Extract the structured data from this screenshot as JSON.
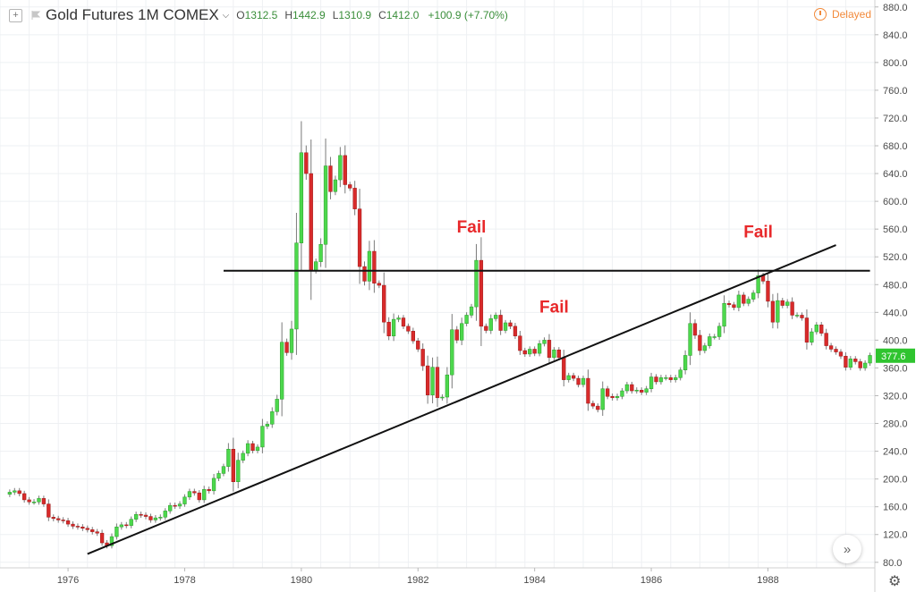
{
  "header": {
    "symbol": "Gold Futures  1M  COMEX",
    "open_label": "O",
    "open": "1312.5",
    "high_label": "H",
    "high": "1442.9",
    "low_label": "L",
    "low": "1310.9",
    "close_label": "C",
    "close": "1412.0",
    "change": "+100.9 (+7.70%)",
    "delayed": "Delayed"
  },
  "colors": {
    "up": "#4cd84c",
    "down": "#d82a2a",
    "wick": "#7a7a7a",
    "price_tag": "#2fc42f",
    "annotation": "#e8282a"
  },
  "chart_data": {
    "type": "candlestick",
    "xlim": [
      "1974-11",
      "1989-11"
    ],
    "ylim": [
      72,
      890
    ],
    "y_ticks": [
      80,
      120,
      160,
      200,
      240,
      280,
      320,
      360,
      400,
      440,
      480,
      520,
      560,
      600,
      640,
      680,
      720,
      760,
      800,
      840,
      880
    ],
    "y_tick_labels": [
      "80.0",
      "120.0",
      "160.0",
      "200.0",
      "240.0",
      "280.0",
      "320.0",
      "360.0",
      "400.0",
      "440.0",
      "480.0",
      "520.0",
      "560.0",
      "600.0",
      "640.0",
      "680.0",
      "720.0",
      "760.0",
      "800.0",
      "840.0",
      "880.0"
    ],
    "x_ticks": [
      "1976",
      "1978",
      "1980",
      "1982",
      "1984",
      "1986",
      "1988"
    ],
    "x_tick_dates": [
      "1976-01",
      "1978-01",
      "1980-01",
      "1982-01",
      "1984-01",
      "1986-01",
      "1988-01"
    ],
    "last_price": "377.6",
    "closes": [
      [
        "1975-01",
        181
      ],
      [
        "1975-02",
        183
      ],
      [
        "1975-03",
        179
      ],
      [
        "1975-04",
        170
      ],
      [
        "1975-05",
        167
      ],
      [
        "1975-06",
        167
      ],
      [
        "1975-07",
        172
      ],
      [
        "1975-08",
        164
      ],
      [
        "1975-09",
        145
      ],
      [
        "1975-10",
        143
      ],
      [
        "1975-11",
        141
      ],
      [
        "1975-12",
        140
      ],
      [
        "1976-01",
        135
      ],
      [
        "1976-02",
        132
      ],
      [
        "1976-03",
        131
      ],
      [
        "1976-04",
        129
      ],
      [
        "1976-05",
        127
      ],
      [
        "1976-06",
        124
      ],
      [
        "1976-07",
        122
      ],
      [
        "1976-08",
        108
      ],
      [
        "1976-09",
        104
      ],
      [
        "1976-10",
        117
      ],
      [
        "1976-11",
        131
      ],
      [
        "1976-12",
        134
      ],
      [
        "1977-01",
        133
      ],
      [
        "1977-02",
        142
      ],
      [
        "1977-03",
        149
      ],
      [
        "1977-04",
        148
      ],
      [
        "1977-05",
        146
      ],
      [
        "1977-06",
        141
      ],
      [
        "1977-07",
        144
      ],
      [
        "1977-08",
        145
      ],
      [
        "1977-09",
        154
      ],
      [
        "1977-10",
        162
      ],
      [
        "1977-11",
        161
      ],
      [
        "1977-12",
        164
      ],
      [
        "1978-01",
        174
      ],
      [
        "1978-02",
        182
      ],
      [
        "1978-03",
        180
      ],
      [
        "1978-04",
        170
      ],
      [
        "1978-05",
        185
      ],
      [
        "1978-06",
        183
      ],
      [
        "1978-07",
        201
      ],
      [
        "1978-08",
        208
      ],
      [
        "1978-09",
        218
      ],
      [
        "1978-10",
        243
      ],
      [
        "1978-11",
        196
      ],
      [
        "1978-12",
        227
      ],
      [
        "1979-01",
        237
      ],
      [
        "1979-02",
        251
      ],
      [
        "1979-03",
        241
      ],
      [
        "1979-04",
        246
      ],
      [
        "1979-05",
        276
      ],
      [
        "1979-06",
        279
      ],
      [
        "1979-07",
        297
      ],
      [
        "1979-08",
        315
      ],
      [
        "1979-09",
        397
      ],
      [
        "1979-10",
        382
      ],
      [
        "1979-11",
        416
      ],
      [
        "1979-12",
        540
      ],
      [
        "1980-01",
        670
      ],
      [
        "1980-02",
        640
      ],
      [
        "1980-03",
        500
      ],
      [
        "1980-04",
        513
      ],
      [
        "1980-05",
        538
      ],
      [
        "1980-06",
        651
      ],
      [
        "1980-07",
        614
      ],
      [
        "1980-08",
        631
      ],
      [
        "1980-09",
        666
      ],
      [
        "1980-10",
        624
      ],
      [
        "1980-11",
        619
      ],
      [
        "1980-12",
        589
      ],
      [
        "1981-01",
        506
      ],
      [
        "1981-02",
        485
      ],
      [
        "1981-03",
        528
      ],
      [
        "1981-04",
        482
      ],
      [
        "1981-05",
        479
      ],
      [
        "1981-06",
        426
      ],
      [
        "1981-07",
        406
      ],
      [
        "1981-08",
        430
      ],
      [
        "1981-09",
        432
      ],
      [
        "1981-10",
        420
      ],
      [
        "1981-11",
        413
      ],
      [
        "1981-12",
        399
      ],
      [
        "1982-01",
        387
      ],
      [
        "1982-02",
        363
      ],
      [
        "1982-03",
        321
      ],
      [
        "1982-04",
        361
      ],
      [
        "1982-05",
        317
      ],
      [
        "1982-06",
        318
      ],
      [
        "1982-07",
        350
      ],
      [
        "1982-08",
        415
      ],
      [
        "1982-09",
        400
      ],
      [
        "1982-10",
        424
      ],
      [
        "1982-11",
        436
      ],
      [
        "1982-12",
        448
      ],
      [
        "1983-01",
        515
      ],
      [
        "1983-02",
        420
      ],
      [
        "1983-03",
        414
      ],
      [
        "1983-04",
        431
      ],
      [
        "1983-05",
        436
      ],
      [
        "1983-06",
        414
      ],
      [
        "1983-07",
        425
      ],
      [
        "1983-08",
        420
      ],
      [
        "1983-09",
        406
      ],
      [
        "1983-10",
        385
      ],
      [
        "1983-11",
        380
      ],
      [
        "1983-12",
        387
      ],
      [
        "1984-01",
        381
      ],
      [
        "1984-02",
        395
      ],
      [
        "1984-03",
        400
      ],
      [
        "1984-04",
        375
      ],
      [
        "1984-05",
        386
      ],
      [
        "1984-06",
        375
      ],
      [
        "1984-07",
        343
      ],
      [
        "1984-08",
        349
      ],
      [
        "1984-09",
        345
      ],
      [
        "1984-10",
        336
      ],
      [
        "1984-11",
        345
      ],
      [
        "1984-12",
        309
      ],
      [
        "1985-01",
        305
      ],
      [
        "1985-02",
        300
      ],
      [
        "1985-03",
        330
      ],
      [
        "1985-04",
        319
      ],
      [
        "1985-05",
        317
      ],
      [
        "1985-06",
        319
      ],
      [
        "1985-07",
        327
      ],
      [
        "1985-08",
        336
      ],
      [
        "1985-09",
        327
      ],
      [
        "1985-10",
        328
      ],
      [
        "1985-11",
        325
      ],
      [
        "1985-12",
        330
      ],
      [
        "1986-01",
        347
      ],
      [
        "1986-02",
        340
      ],
      [
        "1986-03",
        346
      ],
      [
        "1986-04",
        346
      ],
      [
        "1986-05",
        343
      ],
      [
        "1986-06",
        346
      ],
      [
        "1986-07",
        357
      ],
      [
        "1986-08",
        378
      ],
      [
        "1986-09",
        424
      ],
      [
        "1986-10",
        407
      ],
      [
        "1986-11",
        385
      ],
      [
        "1986-12",
        392
      ],
      [
        "1987-01",
        405
      ],
      [
        "1987-02",
        405
      ],
      [
        "1987-03",
        420
      ],
      [
        "1987-04",
        453
      ],
      [
        "1987-05",
        451
      ],
      [
        "1987-06",
        447
      ],
      [
        "1987-07",
        465
      ],
      [
        "1987-08",
        453
      ],
      [
        "1987-09",
        459
      ],
      [
        "1987-10",
        468
      ],
      [
        "1987-11",
        493
      ],
      [
        "1987-12",
        485
      ],
      [
        "1988-01",
        456
      ],
      [
        "1988-02",
        426
      ],
      [
        "1988-03",
        457
      ],
      [
        "1988-04",
        450
      ],
      [
        "1988-05",
        455
      ],
      [
        "1988-06",
        436
      ],
      [
        "1988-07",
        436
      ],
      [
        "1988-08",
        432
      ],
      [
        "1988-09",
        397
      ],
      [
        "1988-10",
        412
      ],
      [
        "1988-11",
        422
      ],
      [
        "1988-12",
        410
      ],
      [
        "1989-01",
        392
      ],
      [
        "1989-02",
        387
      ],
      [
        "1989-03",
        383
      ],
      [
        "1989-04",
        377
      ],
      [
        "1989-05",
        361
      ],
      [
        "1989-06",
        373
      ],
      [
        "1989-07",
        369
      ],
      [
        "1989-08",
        360
      ],
      [
        "1989-09",
        367
      ],
      [
        "1989-10",
        378
      ]
    ],
    "grid": true,
    "annotations": [
      {
        "text": "Fail",
        "date": "1982-12",
        "value": 555
      },
      {
        "text": "Fail",
        "date": "1984-05",
        "value": 440
      },
      {
        "text": "Fail",
        "date": "1987-11",
        "value": 548
      }
    ],
    "horizontal_line": {
      "value": 500,
      "from": "1978-09",
      "to": "1989-10"
    },
    "trend_line": {
      "from": [
        "1976-05",
        92
      ],
      "to": [
        "1989-03",
        537
      ]
    }
  }
}
